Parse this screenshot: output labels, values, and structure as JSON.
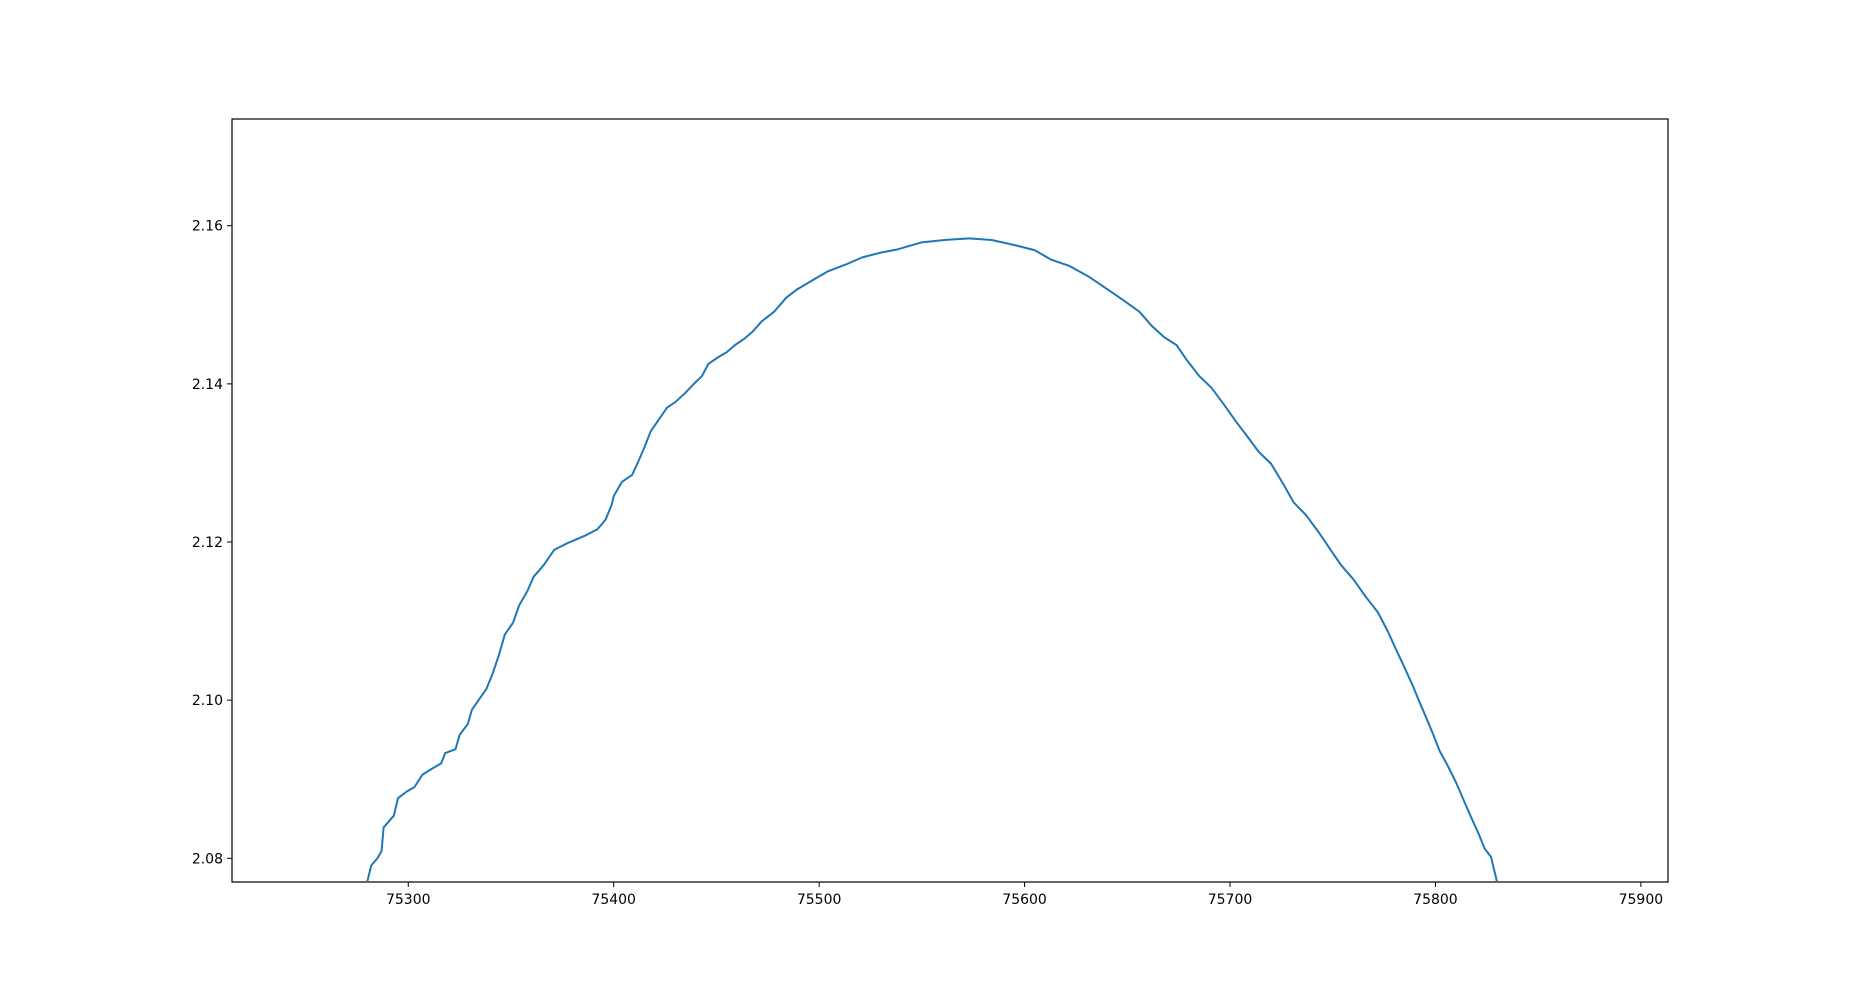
{
  "chart_data": {
    "type": "line",
    "x": [
      75280,
      75282,
      75285,
      75287,
      75288,
      75293,
      75295,
      75299,
      75303,
      75307,
      75312,
      75316,
      75318,
      75323,
      75325,
      75329,
      75331,
      75335,
      75338,
      75341,
      75344,
      75347,
      75351,
      75354,
      75358,
      75361,
      75366,
      75371,
      75377,
      75386,
      75392,
      75396,
      75399,
      75400,
      75404,
      75409,
      75412,
      75415,
      75418,
      75422,
      75426,
      75430,
      75435,
      75439,
      75443,
      75446,
      75451,
      75455,
      75459,
      75464,
      75468,
      75472,
      75478,
      75484,
      75489,
      75498,
      75504,
      75513,
      75521,
      75530,
      75538,
      75550,
      75561,
      75573,
      75584,
      75596,
      75605,
      75613,
      75622,
      75631,
      75639,
      75648,
      75656,
      75662,
      75668,
      75674,
      75679,
      75685,
      75691,
      75697,
      75703,
      75708,
      75714,
      75720,
      75726,
      75731,
      75737,
      75743,
      75749,
      75754,
      75760,
      75766,
      75772,
      75777,
      75781,
      75785,
      75789,
      75792,
      75795,
      75799,
      75802,
      75806,
      75810,
      75814,
      75817,
      75821,
      75824,
      75827,
      75830
    ],
    "series": [
      {
        "color": "#1f77b4",
        "values": [
          2.077,
          2.0791,
          2.08,
          2.0809,
          2.0839,
          2.0854,
          2.0876,
          2.0884,
          2.089,
          2.0906,
          2.0914,
          2.092,
          2.0933,
          2.0938,
          2.0956,
          2.097,
          2.0988,
          2.1003,
          2.1014,
          2.1033,
          2.1056,
          2.1083,
          2.1098,
          2.112,
          2.1138,
          2.1156,
          2.1171,
          2.119,
          2.1198,
          2.1208,
          2.1216,
          2.1228,
          2.1247,
          2.1258,
          2.1276,
          2.1285,
          2.1302,
          2.132,
          2.134,
          2.1355,
          2.137,
          2.1377,
          2.1389,
          2.14,
          2.141,
          2.1425,
          2.1434,
          2.144,
          2.1449,
          2.1458,
          2.1467,
          2.1479,
          2.1491,
          2.1509,
          2.1519,
          2.1533,
          2.1542,
          2.1551,
          2.156,
          2.1566,
          2.157,
          2.1579,
          2.1582,
          2.1584,
          2.1582,
          2.1575,
          2.1569,
          2.1557,
          2.1549,
          2.1536,
          2.1522,
          2.1506,
          2.1491,
          2.1473,
          2.1459,
          2.1449,
          2.143,
          2.141,
          2.1395,
          2.1374,
          2.1352,
          2.1335,
          2.1314,
          2.1299,
          2.1273,
          2.125,
          2.1234,
          2.1213,
          2.119,
          2.1171,
          2.1153,
          2.1131,
          2.1111,
          2.1086,
          2.1063,
          2.1041,
          2.1018,
          2.0999,
          2.0981,
          2.0956,
          2.0936,
          2.0917,
          2.0896,
          2.0872,
          2.0854,
          2.0831,
          2.0812,
          2.0802,
          2.077
        ]
      }
    ],
    "xlim": [
      75214.2,
      75913.2
    ],
    "xticks": [
      75300,
      75400,
      75500,
      75600,
      75700,
      75800,
      75900
    ],
    "ylim": [
      2.077,
      2.1735
    ],
    "yticks": [
      2.08,
      {
        "value": 2.1,
        "label": "2.10"
      },
      2.12,
      2.14,
      2.16
    ],
    "grid": false
  }
}
